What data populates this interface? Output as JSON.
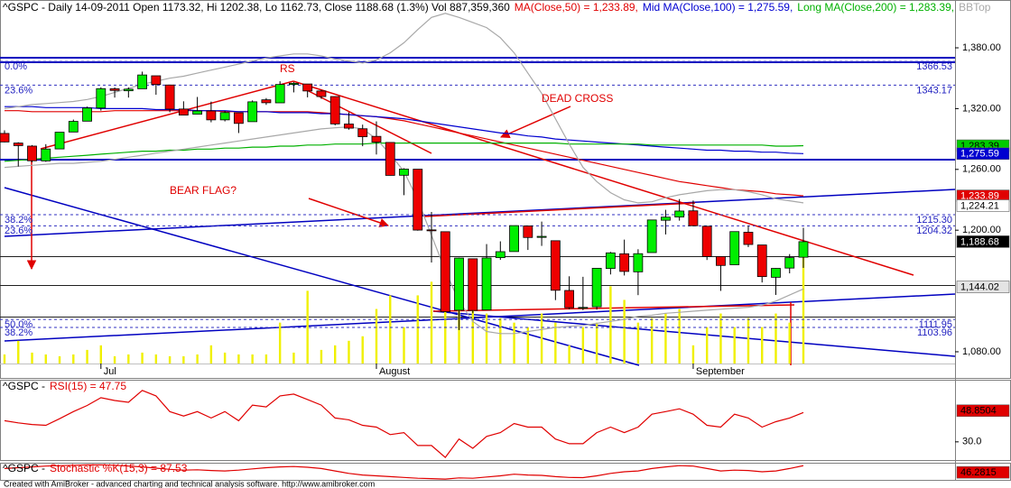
{
  "chart_data": [
    {
      "type": "candlestick",
      "title": "^GSPC - Daily 14-09-2011 Open 1173.32, Hi 1202.38, Lo 1162.73, Close 1188.68 (1.3%) Vol 887,359,360",
      "categories": [
        null,
        null,
        null,
        null,
        null,
        null,
        null,
        "Jul",
        null,
        null,
        null,
        null,
        null,
        null,
        null,
        null,
        null,
        null,
        null,
        null,
        null,
        null,
        null,
        null,
        null,
        null,
        null,
        "August",
        null,
        null,
        null,
        null,
        null,
        null,
        null,
        null,
        null,
        null,
        null,
        null,
        null,
        null,
        null,
        null,
        null,
        null,
        null,
        null,
        null,
        null,
        "September",
        null,
        null,
        null,
        null,
        null,
        null,
        null,
        null
      ],
      "open": [
        1295.5,
        1286,
        1283,
        1268.4,
        1280.2,
        1296.9,
        1307.6,
        1320.6,
        1339.6,
        1337.6,
        1339.6,
        1352.4,
        1343.3,
        1319.6,
        1314.5,
        1317.7,
        1308.9,
        1315.9,
        1307.1,
        1328.7,
        1325.7,
        1343.8,
        1344.3,
        1337.4,
        1331.9,
        1304.8,
        1300.1,
        1292.6,
        1286.6,
        1254.2,
        1260.2,
        1200.3,
        1198.5,
        1121,
        1171.8,
        1121.3,
        1172.9,
        1178.9,
        1204.2,
        1192.9,
        1189.6,
        1140.5,
        1123.6,
        1124.4,
        1162.2,
        1176.7,
        1158.9,
        1177.9,
        1209.8,
        1213,
        1219.1,
        1203.9,
        1173.97,
        1165.9,
        1197.98,
        1185.4,
        1153.5,
        1162.6,
        1173.32
      ],
      "high": [
        1298.6,
        1286.8,
        1284,
        1284.9,
        1296.8,
        1309.2,
        1321.97,
        1341,
        1340.9,
        1340.9,
        1356.5,
        1352.4,
        1343.3,
        1327.2,
        1331.5,
        1326.9,
        1317.7,
        1315.9,
        1328.1,
        1330.4,
        1347,
        1346.1,
        1344.3,
        1338.5,
        1331.9,
        1316.3,
        1304.2,
        1307.4,
        1286.6,
        1261.2,
        1260.2,
        1218,
        1198.5,
        1172.9,
        1171.8,
        1186.3,
        1189,
        1204.5,
        1204.2,
        1208.5,
        1189.6,
        1154.5,
        1154,
        1162.4,
        1178.6,
        1190.7,
        1181.2,
        1210.1,
        1220.1,
        1230.7,
        1229.3,
        1203.9,
        1173.97,
        1198.6,
        1204.4,
        1185.4,
        1162.5,
        1176.4,
        1202.38
      ],
      "low": [
        1286.8,
        1262.9,
        1267,
        1267.5,
        1280.2,
        1296.9,
        1307.6,
        1318,
        1330.9,
        1330.9,
        1339.6,
        1333.7,
        1316.4,
        1313.3,
        1314.5,
        1306.5,
        1307.4,
        1295.9,
        1307.1,
        1323.7,
        1325.7,
        1336,
        1331.1,
        1329.6,
        1303.5,
        1299.2,
        1282.9,
        1274.7,
        1254,
        1234.6,
        1199.5,
        1168.1,
        1119.3,
        1101.5,
        1118,
        1121.3,
        1170.7,
        1178.9,
        1180.5,
        1184.5,
        1131,
        1122,
        1121.1,
        1121.6,
        1156.3,
        1155.3,
        1135.9,
        1177.9,
        1195.8,
        1209.4,
        1203.9,
        1170.6,
        1140.1,
        1165.9,
        1183.3,
        1148.4,
        1136.1,
        1157.4,
        1162.73
      ],
      "close": [
        1287.1,
        1283.5,
        1268.5,
        1280.1,
        1296.7,
        1307.4,
        1320.6,
        1339.7,
        1337.9,
        1339.2,
        1353.2,
        1343.8,
        1319.5,
        1313.6,
        1317.7,
        1308.9,
        1316.1,
        1305.4,
        1326.7,
        1325.8,
        1343.8,
        1345,
        1337.4,
        1331.9,
        1304.9,
        1300.7,
        1292.3,
        1286.9,
        1254.1,
        1260.3,
        1200.1,
        1199.4,
        1119.5,
        1172.5,
        1120.8,
        1172.6,
        1178.8,
        1204.5,
        1192.8,
        1193.9,
        1140.7,
        1123.5,
        1123.8,
        1162.4,
        1177.6,
        1159.3,
        1176.8,
        1210.1,
        1212.9,
        1218.9,
        1204.4,
        1174,
        1165.2,
        1198.6,
        1185.9,
        1154.2,
        1162.3,
        1172.9,
        1188.68
      ],
      "up_color": "#00ee00",
      "down_color": "#ee0000",
      "volume": {
        "color": "#f0f000",
        "ylim": [
          0,
          3000000000
        ],
        "values": [
          75000000,
          187500000,
          90000000,
          75000000,
          60000000,
          75000000,
          112500000,
          150000000,
          60000000,
          75000000,
          90000000,
          75000000,
          60000000,
          60000000,
          75000000,
          150000000,
          90000000,
          75000000,
          75000000,
          75000000,
          337500000,
          90000000,
          600000000,
          112500000,
          150000000,
          187500000,
          225000000,
          450000000,
          562500000,
          300000000,
          562500000,
          675000000,
          975000000,
          750000000,
          525000000,
          412500000,
          375000000,
          337500000,
          300000000,
          412500000,
          337500000,
          150000000,
          300000000,
          337500000,
          637500000,
          525000000,
          337500000,
          375000000,
          412500000,
          450000000,
          150000000,
          300000000,
          412500000,
          300000000,
          375000000,
          300000000,
          412500000,
          337500000,
          887359360
        ]
      },
      "series": [
        {
          "name": "MA(Close,50) = 1,233.89,",
          "color": "#e00000",
          "values": [
            1318,
            1318,
            1317,
            1317,
            1317,
            1317,
            1317,
            1317,
            1318,
            1318,
            1318,
            1318,
            1318,
            1318,
            1318,
            1318,
            1317,
            1317,
            1317,
            1317,
            1317,
            1317,
            1317,
            1316,
            1315,
            1314,
            1313,
            1312,
            1310,
            1308,
            1305,
            1302,
            1299,
            1296,
            1293,
            1290,
            1287,
            1284,
            1281,
            1278,
            1275,
            1272,
            1269,
            1266,
            1263,
            1260,
            1257,
            1254,
            1251,
            1248,
            1246,
            1244,
            1242,
            1240,
            1239,
            1238,
            1236,
            1235,
            1233.89
          ]
        },
        {
          "name": "Mid MA(Close,100) = 1,275.59,",
          "color": "#0000d0",
          "values": [
            1322,
            1322,
            1322,
            1321,
            1321,
            1321,
            1321,
            1320,
            1320,
            1320,
            1320,
            1319,
            1319,
            1319,
            1318,
            1318,
            1318,
            1317,
            1317,
            1317,
            1316,
            1316,
            1316,
            1315,
            1315,
            1314,
            1313,
            1312,
            1311,
            1310,
            1308,
            1306,
            1304,
            1302,
            1300,
            1298,
            1296,
            1295,
            1293,
            1292,
            1290,
            1289,
            1288,
            1287,
            1286,
            1285,
            1284,
            1283,
            1282,
            1281,
            1280,
            1279,
            1279,
            1278,
            1278,
            1277,
            1277,
            1276,
            1275.59
          ]
        },
        {
          "name": "Long MA(Close,200) = 1,283.39,",
          "color": "#00b000",
          "values": [
            1268,
            1269,
            1270,
            1271,
            1272,
            1273,
            1274,
            1275,
            1276,
            1277,
            1278,
            1278,
            1279,
            1279,
            1280,
            1280,
            1281,
            1281,
            1282,
            1282,
            1283,
            1283,
            1284,
            1284,
            1285,
            1285,
            1285,
            1286,
            1286,
            1286,
            1286,
            1286,
            1286,
            1286,
            1286,
            1286,
            1286,
            1286,
            1286,
            1286,
            1286,
            1285,
            1285,
            1285,
            1285,
            1285,
            1285,
            1284,
            1284,
            1284,
            1284,
            1284,
            1284,
            1284,
            1284,
            1284,
            1283,
            1283,
            1283.39
          ]
        },
        {
          "name": "BBTop",
          "color": "#a8a8a8",
          "values": [
            1320,
            1322,
            1324,
            1325,
            1326,
            1327,
            1329,
            1332,
            1336,
            1340,
            1344,
            1347,
            1350,
            1352,
            1355,
            1358,
            1361,
            1364,
            1367,
            1370,
            1372,
            1374,
            1374,
            1372,
            1369,
            1367,
            1365,
            1368,
            1375,
            1385,
            1398,
            1410,
            1414,
            1410,
            1405,
            1400,
            1390,
            1375,
            1355,
            1335,
            1310,
            1285,
            1262,
            1248,
            1237,
            1230,
            1227,
            1228,
            1232,
            1235,
            1237,
            1239,
            1240,
            1240,
            1238,
            1235,
            1231,
            1229,
            1227
          ]
        },
        {
          "color": "#a8a8a8",
          "values": [
            1262,
            1263,
            1264,
            1265,
            1266,
            1266,
            1267,
            1268,
            1270,
            1272,
            1274,
            1276,
            1278,
            1280,
            1282,
            1284,
            1286,
            1288,
            1290,
            1292,
            1294,
            1296,
            1298,
            1300,
            1301,
            1302,
            1300,
            1290,
            1275,
            1258,
            1230,
            1195,
            1160,
            1130,
            1110,
            1100,
            1098,
            1098,
            1100,
            1102,
            1104,
            1105,
            1106,
            1108,
            1110,
            1112,
            1115,
            1116,
            1118,
            1119,
            1120,
            1121,
            1122,
            1123,
            1124,
            1126,
            1130,
            1136,
            1142
          ]
        }
      ],
      "ylim": [
        1068.4,
        1427.2
      ],
      "yticks": [
        {
          "value": 1380,
          "label": "1,380.00"
        },
        {
          "value": 1320,
          "label": "1,320.00"
        },
        {
          "value": 1260,
          "label": "1,260.00"
        },
        {
          "value": 1200,
          "label": "1,200.00"
        },
        {
          "value": 1080,
          "label": "1,080.00"
        }
      ],
      "price_markers": [
        {
          "value": 1283.39,
          "label": "1,283.39",
          "color": "#00cc00",
          "text_color": "#000000"
        },
        {
          "value": 1275.59,
          "label": "1,275.59",
          "color": "#0000d0",
          "text_color": "#ffffff"
        },
        {
          "value": 1233.89,
          "label": "1,233.89",
          "color": "#e00000",
          "text_color": "#ffffff"
        },
        {
          "value": 1224.21,
          "label": "1,224.21",
          "color": "#ffffff",
          "text_color": "#000000"
        },
        {
          "value": 1188.68,
          "label": "1,188.68",
          "color": "#000000",
          "text_color": "#ffffff"
        },
        {
          "value": 1144.02,
          "label": "1,144.02",
          "color": "#e4e4e4",
          "text_color": "#000000"
        }
      ],
      "fib_levels": [
        {
          "name": "0.0%",
          "value": 1366.53
        },
        {
          "name": "23.6%",
          "value": 1343.17
        },
        {
          "name": "38.2%",
          "value": 1215.3,
          "label": "1215.30"
        },
        {
          "name": "23.6%",
          "value": 1204.32
        },
        {
          "name": "50.0%",
          "value": 1111.95
        },
        {
          "name": "38.2%",
          "value": 1103.96
        }
      ],
      "annotations": [
        "RS",
        "DEAD CROSS",
        "BEAR FLAG?"
      ]
    },
    {
      "type": "line",
      "title": "^GSPC -",
      "series": [
        {
          "name": "RSI(15) = 47.75",
          "color": "#e00000",
          "values": [
            42.8,
            41.5,
            40.5,
            40,
            44,
            48.3,
            52,
            56.7,
            55,
            53.9,
            61.1,
            57.8,
            48.3,
            45.6,
            48.3,
            44.4,
            48.3,
            42.8,
            52.2,
            51.1,
            57.8,
            58.9,
            55.6,
            52.2,
            44.4,
            43.3,
            40,
            38.9,
            34.4,
            35.6,
            27.8,
            27.8,
            20.6,
            31.7,
            26.1,
            33.3,
            35.6,
            41.1,
            38.9,
            38.9,
            31.7,
            28.9,
            28.9,
            35.6,
            38.9,
            35.6,
            38.9,
            46.7,
            48.3,
            50,
            46.7,
            40,
            38.9,
            46.7,
            44.4,
            38.9,
            42.2,
            44.4,
            47.75
          ]
        }
      ],
      "ylim": [
        19,
        67
      ],
      "yticks": [
        {
          "value": 30,
          "label": "30.0"
        }
      ],
      "price_markers": [
        {
          "value": 48.8504,
          "color": "#e00000",
          "text_color": "#000000"
        }
      ]
    },
    {
      "type": "line",
      "title": "^GSPC -",
      "series": [
        {
          "name": "Stochastic %K(15,3) = 87.53",
          "color": "#e00000",
          "values": [
            70,
            75,
            80,
            85,
            88,
            90,
            92,
            93,
            90,
            85,
            80,
            72,
            65,
            60,
            62,
            58,
            55,
            60,
            68,
            75,
            80,
            82,
            78,
            70,
            55,
            40,
            30,
            25,
            20,
            15,
            10,
            8,
            5,
            12,
            10,
            18,
            25,
            35,
            30,
            28,
            20,
            15,
            14,
            25,
            40,
            50,
            55,
            70,
            80,
            88,
            85,
            70,
            55,
            60,
            58,
            50,
            55,
            70,
            87.53
          ]
        }
      ],
      "ylim": [
        0,
        100
      ],
      "yticks": [],
      "price_markers": [
        {
          "value": 46.2815,
          "color": "#e00000",
          "text_color": "#000000"
        }
      ]
    }
  ],
  "footer": "Created with AmiBroker - advanced charting and technical analysis software. http://www.amibroker.com"
}
